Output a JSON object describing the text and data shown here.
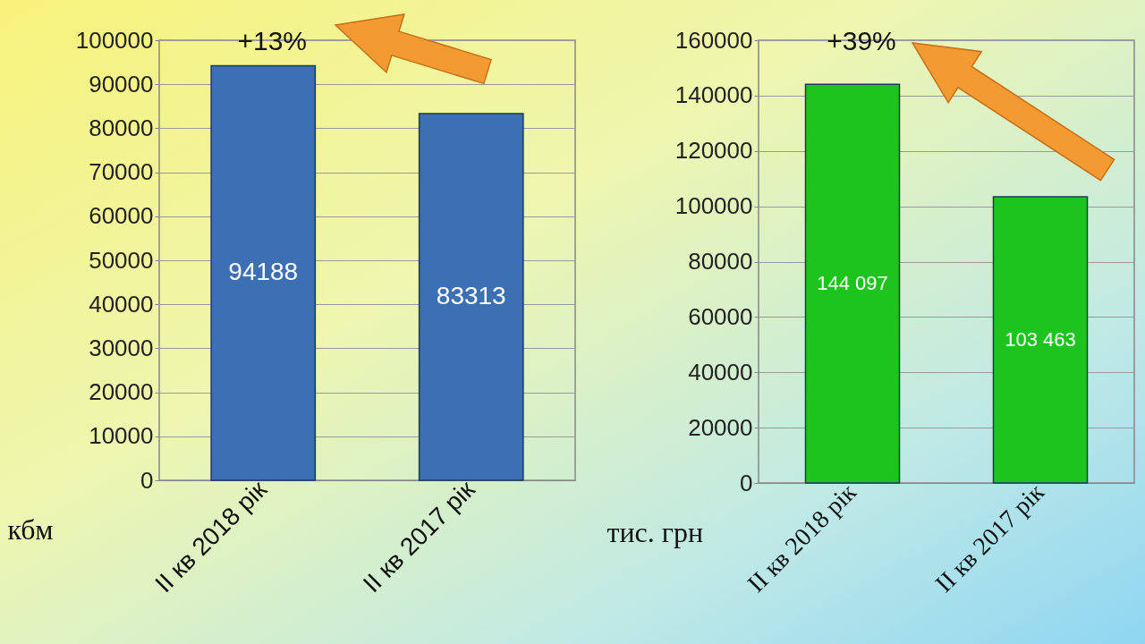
{
  "chart_data": [
    {
      "type": "bar",
      "categories": [
        "II кв 2018 рік",
        "II кв 2017 рік"
      ],
      "values": [
        94188,
        83313
      ],
      "color": "#3d6fb3",
      "ylabel": "кбм",
      "ylim": [
        0,
        100000
      ],
      "yticks": [
        0,
        10000,
        20000,
        30000,
        40000,
        50000,
        60000,
        70000,
        80000,
        90000,
        100000
      ],
      "grid": "y",
      "data_labels": true,
      "annotations": [
        "+13%"
      ]
    },
    {
      "type": "bar",
      "categories": [
        "II кв 2018 рік",
        "II кв 2017 рік"
      ],
      "values": [
        144097,
        103463
      ],
      "color": "#1ec41e",
      "ylabel": "тис. грн",
      "ylim": [
        0,
        160000
      ],
      "yticks": [
        0,
        20000,
        40000,
        60000,
        80000,
        100000,
        120000,
        140000,
        160000
      ],
      "grid": "y",
      "value_labels": [
        "144 097",
        "103 463"
      ],
      "annotations": [
        "+39%"
      ]
    }
  ]
}
